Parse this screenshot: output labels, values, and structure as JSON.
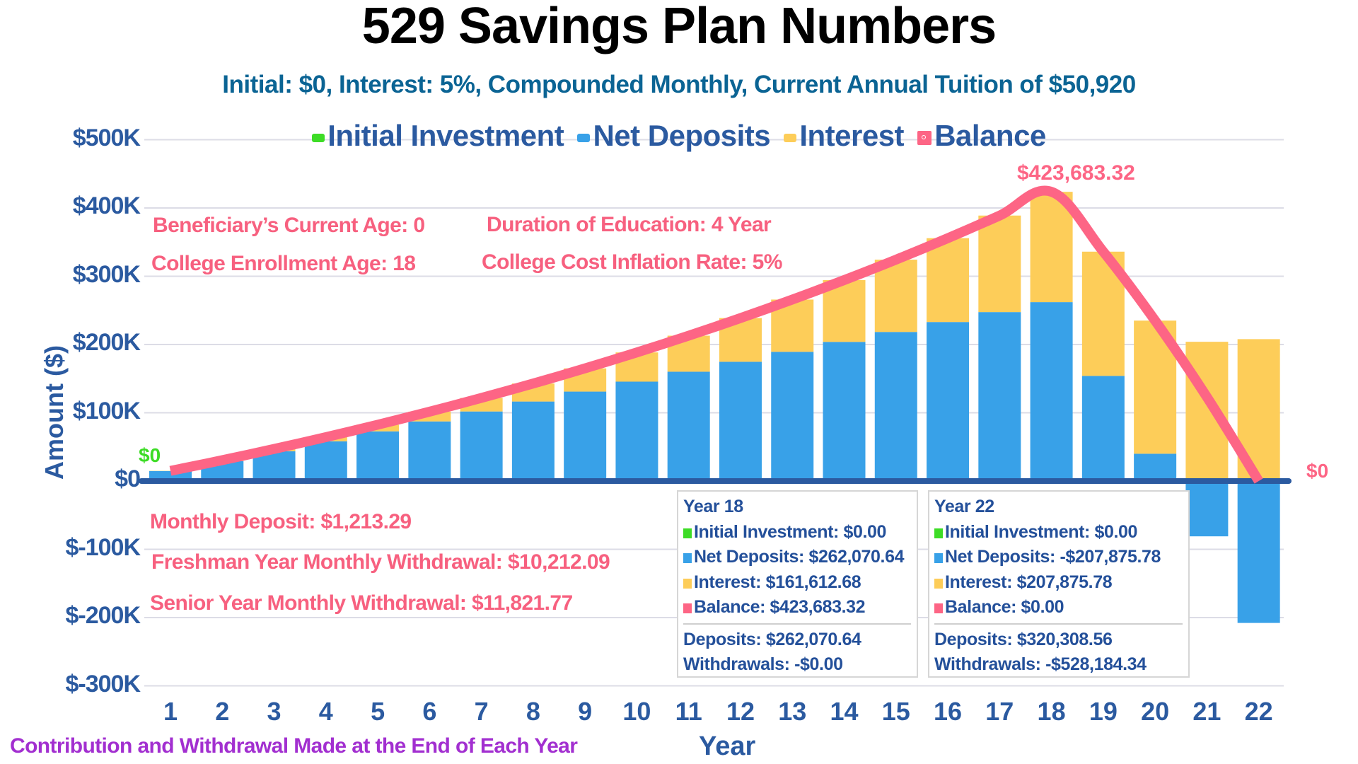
{
  "title": "529 Savings Plan Numbers",
  "subtitle": "Initial: $0, Interest: 5%, Compounded Monthly, Current Annual Tuition of $50,920",
  "legend": [
    {
      "label": "Initial Investment",
      "color": "#3ddc26",
      "type": "bar"
    },
    {
      "label": "Net Deposits",
      "color": "#38a1e8",
      "type": "bar"
    },
    {
      "label": "Interest",
      "color": "#fdcd59",
      "type": "bar"
    },
    {
      "label": "Balance",
      "color": "#fd6585",
      "type": "line"
    }
  ],
  "annotations": {
    "current_age": "Beneficiary’s Current Age: 0",
    "enrollment_age": "College Enrollment Age: 18",
    "duration": "Duration of Education: 4 Year",
    "inflation": "College Cost Inflation Rate: 5%",
    "monthly_deposit": "Monthly Deposit: $1,213.29",
    "freshman_withdrawal": "Freshman Year Monthly Withdrawal: $10,212.09",
    "senior_withdrawal": "Senior Year Monthly Withdrawal: $11,821.77",
    "start_label": "$0",
    "end_label": "$0",
    "peak_label": "$423,683.32"
  },
  "x_note": "Contribution and Withdrawal Made at the End of Each Year",
  "axes": {
    "x_title": "Year",
    "y_title": "Amount ($)",
    "y_ticks": [
      "$500K",
      "$400K",
      "$300K",
      "$200K",
      "$100K",
      "$0",
      "$-100K",
      "$-200K",
      "$-300K"
    ]
  },
  "tooltips": [
    {
      "title": "Year 18",
      "rows": [
        {
          "label": "Initial Investment: $0.00",
          "color": "#3ddc26"
        },
        {
          "label": "Net Deposits: $262,070.64",
          "color": "#38a1e8"
        },
        {
          "label": "Interest: $161,612.68",
          "color": "#fdcd59"
        },
        {
          "label": "Balance: $423,683.32",
          "color": "#fd6585"
        }
      ],
      "deposits": "Deposits: $262,070.64",
      "withdrawals": "Withdrawals: -$0.00"
    },
    {
      "title": "Year 22",
      "rows": [
        {
          "label": "Initial Investment: $0.00",
          "color": "#3ddc26"
        },
        {
          "label": "Net Deposits: -$207,875.78",
          "color": "#38a1e8"
        },
        {
          "label": "Interest: $207,875.78",
          "color": "#fdcd59"
        },
        {
          "label": "Balance: $0.00",
          "color": "#fd6585"
        }
      ],
      "deposits": "Deposits: $320,308.56",
      "withdrawals": "Withdrawals: -$528,184.34"
    }
  ],
  "colors": {
    "initial": "#3ddc26",
    "net_deposits": "#38a1e8",
    "interest": "#fdcd59",
    "balance": "#fd6585",
    "axis": "#2b5aa0",
    "grid": "#dcdce6",
    "annotation": "#f7607f",
    "note": "#a22fd0"
  },
  "chart_data": {
    "type": "bar",
    "stacked": true,
    "title": "529 Savings Plan Numbers",
    "subtitle": "Initial: $0, Interest: 5%, Compounded Monthly, Current Annual Tuition of $50,920",
    "xlabel": "Year",
    "ylabel": "Amount ($)",
    "ylim": [
      -300000,
      500000
    ],
    "y_tick_step": 100000,
    "grid": true,
    "legend_position": "top",
    "categories": [
      "1",
      "2",
      "3",
      "4",
      "5",
      "6",
      "7",
      "8",
      "9",
      "10",
      "11",
      "12",
      "13",
      "14",
      "15",
      "16",
      "17",
      "18",
      "19",
      "20",
      "21",
      "22"
    ],
    "series": [
      {
        "name": "Initial Investment",
        "type": "bar",
        "values": [
          0,
          0,
          0,
          0,
          0,
          0,
          0,
          0,
          0,
          0,
          0,
          0,
          0,
          0,
          0,
          0,
          0,
          0,
          0,
          0,
          0,
          0
        ]
      },
      {
        "name": "Net Deposits",
        "type": "bar",
        "values": [
          14559,
          29119,
          43678,
          58238,
          72797,
          87357,
          101916,
          116476,
          131035,
          145595,
          160154,
          174714,
          189273,
          203833,
          218392,
          232952,
          247511,
          262071,
          154000,
          40000,
          -81000,
          -207876
        ]
      },
      {
        "name": "Interest",
        "type": "bar",
        "values": [
          339,
          1438,
          3341,
          6083,
          9715,
          14271,
          19810,
          26375,
          34023,
          42807,
          52784,
          64017,
          76572,
          90511,
          105905,
          122839,
          141380,
          161613,
          182000,
          195000,
          204000,
          207876
        ]
      },
      {
        "name": "Balance",
        "type": "line",
        "values": [
          14898,
          30557,
          47019,
          64321,
          82512,
          101628,
          121726,
          142851,
          165058,
          188402,
          212938,
          238731,
          265845,
          294344,
          324297,
          355791,
          388891,
          423683,
          336000,
          235000,
          123000,
          0
        ]
      }
    ],
    "annotations": [
      {
        "x": "1",
        "text": "$0",
        "series": "Initial Investment"
      },
      {
        "x": "18",
        "text": "$423,683.32",
        "series": "Balance"
      },
      {
        "x": "22",
        "text": "$0",
        "series": "Balance"
      }
    ]
  }
}
